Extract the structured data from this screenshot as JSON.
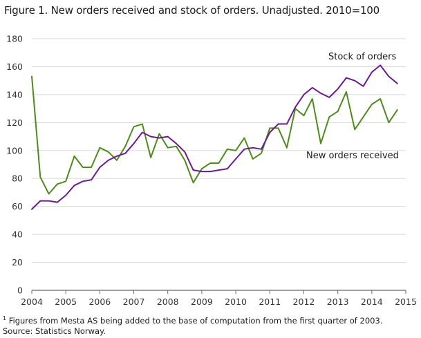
{
  "title": "Figure 1. New orders received and stock of orders. Unadjusted. 2010=100",
  "footnote_marker": "1",
  "footnote_text": " Figures from Mesta AS being added to the base of computation from the first quarter of 2003.",
  "source": "Source: Statistics Norway.",
  "colors": {
    "new_orders": "#4e8a1c",
    "stock": "#6a1a8c",
    "grid": "#d9d9d9",
    "axis": "#666666"
  },
  "chart_data": {
    "type": "line",
    "title": "Figure 1. New orders received and stock of orders. Unadjusted. 2010=100",
    "xlim": [
      2004,
      2015
    ],
    "ylim": [
      0,
      180
    ],
    "y_ticks": [
      0,
      20,
      40,
      60,
      80,
      100,
      120,
      140,
      160,
      180
    ],
    "x_ticks": [
      "2004",
      "2005",
      "2006",
      "2007",
      "2008",
      "2009",
      "2010",
      "2011",
      "2012",
      "2013",
      "2014",
      "2015"
    ],
    "grid": true,
    "x": [
      "2004Q1",
      "2004Q2",
      "2004Q3",
      "2004Q4",
      "2005Q1",
      "2005Q2",
      "2005Q3",
      "2005Q4",
      "2006Q1",
      "2006Q2",
      "2006Q3",
      "2006Q4",
      "2007Q1",
      "2007Q2",
      "2007Q3",
      "2007Q4",
      "2008Q1",
      "2008Q2",
      "2008Q3",
      "2008Q4",
      "2009Q1",
      "2009Q2",
      "2009Q3",
      "2009Q4",
      "2010Q1",
      "2010Q2",
      "2010Q3",
      "2010Q4",
      "2011Q1",
      "2011Q2",
      "2011Q3",
      "2011Q4",
      "2012Q1",
      "2012Q2",
      "2012Q3",
      "2012Q4",
      "2013Q1",
      "2013Q2",
      "2013Q3",
      "2013Q4",
      "2014Q1",
      "2014Q2",
      "2014Q3",
      "2014Q4"
    ],
    "series": [
      {
        "name": "New orders received",
        "values": [
          153,
          81,
          69,
          76,
          78,
          96,
          88,
          88,
          102,
          99,
          93,
          103,
          117,
          119,
          95,
          112,
          102,
          103,
          93,
          77,
          87,
          91,
          91,
          101,
          100,
          109,
          94,
          98,
          116,
          116,
          102,
          130,
          125,
          137,
          105,
          124,
          128,
          142,
          115,
          124,
          133,
          137,
          120,
          129
        ]
      },
      {
        "name": "Stock of orders",
        "values": [
          58,
          64,
          64,
          63,
          68,
          75,
          78,
          79,
          88,
          93,
          96,
          98,
          105,
          113,
          110,
          109,
          110,
          105,
          99,
          86,
          85,
          85,
          86,
          87,
          94,
          101,
          102,
          101,
          113,
          119,
          119,
          131,
          140,
          145,
          141,
          138,
          144,
          152,
          150,
          146,
          156,
          161,
          153,
          148
        ]
      }
    ]
  }
}
